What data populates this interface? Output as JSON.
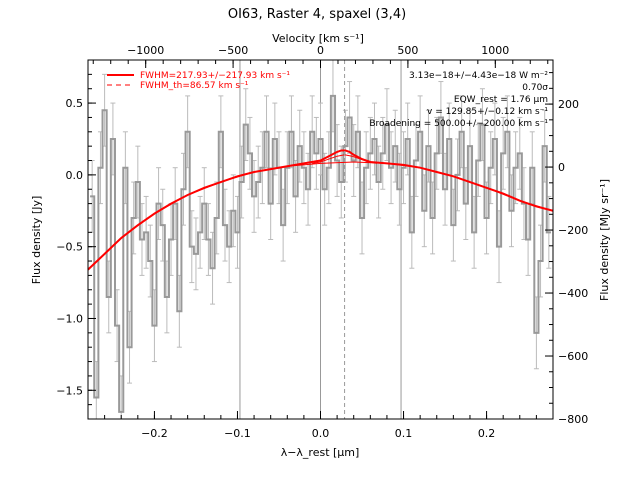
{
  "chart_data": {
    "type": "line",
    "title": "OI63, Raster 4, spaxel (3,4)",
    "xlabel": "λ−λ_rest [μm]",
    "ylabel": "Flux density [Jy]",
    "x2label": "Velocity [km s⁻¹]",
    "y2label": "Flux density [MJy sr⁻¹]",
    "xlim": [
      -0.28,
      0.28
    ],
    "ylim": [
      -1.7,
      0.8
    ],
    "x2lim": [
      -1330,
      1330
    ],
    "y2lim": [
      -800,
      340
    ],
    "xticks": [
      -0.2,
      -0.1,
      0.0,
      0.1,
      0.2
    ],
    "xtick_labels": [
      "−0.2",
      "−0.1",
      "0.0",
      "0.1",
      "0.2"
    ],
    "yticks": [
      -1.5,
      -1.0,
      -0.5,
      0.0,
      0.5
    ],
    "ytick_labels": [
      "−1.5",
      "−1.0",
      "−0.5",
      "0.0",
      "0.5"
    ],
    "x2ticks": [
      -1000,
      -500,
      0,
      500,
      1000
    ],
    "x2tick_labels": [
      "−1000",
      "−500",
      "0",
      "500",
      "1000"
    ],
    "y2ticks": [
      -800,
      -600,
      -400,
      -200,
      0,
      200
    ],
    "y2tick_labels": [
      "−800",
      "−600",
      "−400",
      "−200",
      "0",
      "200"
    ],
    "vertical_lines": [
      -0.097,
      0.0,
      0.097
    ],
    "line_center": 0.029,
    "legend": {
      "fit_label": "FWHM=217.93+/−217.93 km s⁻¹",
      "th_label": "FWHM_th=86.57 km s⁻¹",
      "fit_color": "#ff0000"
    },
    "annotations": [
      "3.13e−18+/−4.43e−18 W m⁻²",
      "0.70σ",
      "EQW_rest = 1.76 μm",
      "v = 129.85+/−0.12 km s⁻¹",
      "Broadening = 500.00+/−200.00 km s⁻¹"
    ],
    "colors": {
      "data": "#999999",
      "error": "#bbbbbb",
      "fit": "#ff0000",
      "vline": "#999999"
    },
    "series": [
      {
        "name": "spectrum",
        "x": [
          -0.275,
          -0.27,
          -0.265,
          -0.26,
          -0.255,
          -0.25,
          -0.245,
          -0.24,
          -0.235,
          -0.23,
          -0.225,
          -0.22,
          -0.215,
          -0.21,
          -0.205,
          -0.2,
          -0.195,
          -0.19,
          -0.185,
          -0.18,
          -0.175,
          -0.17,
          -0.165,
          -0.16,
          -0.155,
          -0.15,
          -0.145,
          -0.14,
          -0.135,
          -0.13,
          -0.125,
          -0.12,
          -0.115,
          -0.11,
          -0.105,
          -0.1,
          -0.095,
          -0.09,
          -0.085,
          -0.08,
          -0.075,
          -0.07,
          -0.065,
          -0.06,
          -0.055,
          -0.05,
          -0.045,
          -0.04,
          -0.035,
          -0.03,
          -0.025,
          -0.02,
          -0.015,
          -0.01,
          -0.005,
          0.0,
          0.005,
          0.01,
          0.015,
          0.02,
          0.025,
          0.03,
          0.035,
          0.04,
          0.045,
          0.05,
          0.055,
          0.06,
          0.065,
          0.07,
          0.075,
          0.08,
          0.085,
          0.09,
          0.095,
          0.1,
          0.105,
          0.11,
          0.115,
          0.12,
          0.125,
          0.13,
          0.135,
          0.14,
          0.145,
          0.15,
          0.155,
          0.16,
          0.165,
          0.17,
          0.175,
          0.18,
          0.185,
          0.19,
          0.195,
          0.2,
          0.205,
          0.21,
          0.215,
          0.22,
          0.225,
          0.23,
          0.235,
          0.24,
          0.245,
          0.25,
          0.255,
          0.26,
          0.265,
          0.27,
          0.275
        ],
        "y": [
          -0.15,
          -1.55,
          0.05,
          0.45,
          -0.85,
          0.25,
          -1.05,
          -1.65,
          0.05,
          -1.2,
          -0.3,
          -0.05,
          -0.45,
          -0.4,
          -0.6,
          -1.05,
          -0.2,
          -0.35,
          -0.85,
          -0.45,
          -0.2,
          -0.95,
          -0.1,
          0.3,
          -0.5,
          -0.55,
          -0.4,
          -0.2,
          -0.45,
          -0.65,
          -0.3,
          0.3,
          -0.35,
          -0.5,
          -0.25,
          -0.4,
          -0.05,
          0.35,
          0.15,
          -0.15,
          -0.05,
          0.05,
          0.3,
          -0.2,
          0.25,
          0.05,
          -0.35,
          0.05,
          0.3,
          -0.15,
          0.2,
          0.05,
          -0.1,
          0.3,
          0.15,
          0.25,
          -0.1,
          0.05,
          0.55,
          0.1,
          -0.05,
          0.2,
          0.4,
          0.1,
          0.3,
          -0.3,
          0.05,
          0.15,
          0.25,
          -0.05,
          0.15,
          0.35,
          0.05,
          0.2,
          -0.1,
          0.05,
          0.25,
          -0.4,
          0.1,
          0.3,
          -0.25,
          0.2,
          -0.3,
          0.15,
          0.4,
          -0.1,
          0.25,
          -0.35,
          0.0,
          0.3,
          -0.2,
          0.2,
          -0.4,
          0.1,
          0.35,
          -0.3,
          0.05,
          0.25,
          -0.5,
          0.15,
          0.3,
          -0.25,
          0.05,
          0.15,
          -0.2,
          -0.45,
          0.05,
          -1.1,
          -0.6,
          0.2,
          -0.4
        ],
        "err": [
          0.25,
          0.25,
          0.25,
          0.25,
          0.25,
          0.25,
          0.25,
          0.25,
          0.25,
          0.25,
          0.25,
          0.25,
          0.25,
          0.25,
          0.25,
          0.25,
          0.25,
          0.25,
          0.25,
          0.25,
          0.25,
          0.25,
          0.25,
          0.25,
          0.25,
          0.25,
          0.25,
          0.25,
          0.25,
          0.25,
          0.25,
          0.25,
          0.25,
          0.25,
          0.25,
          0.25,
          0.25,
          0.25,
          0.25,
          0.25,
          0.25,
          0.25,
          0.25,
          0.25,
          0.25,
          0.25,
          0.25,
          0.25,
          0.25,
          0.25,
          0.25,
          0.25,
          0.25,
          0.25,
          0.25,
          0.25,
          0.25,
          0.25,
          0.25,
          0.25,
          0.25,
          0.25,
          0.25,
          0.25,
          0.25,
          0.25,
          0.25,
          0.25,
          0.25,
          0.25,
          0.25,
          0.25,
          0.25,
          0.25,
          0.25,
          0.25,
          0.25,
          0.25,
          0.25,
          0.25,
          0.25,
          0.25,
          0.25,
          0.25,
          0.25,
          0.25,
          0.25,
          0.25,
          0.25,
          0.25,
          0.25,
          0.25,
          0.25,
          0.25,
          0.25,
          0.25,
          0.25,
          0.25,
          0.25,
          0.25,
          0.25,
          0.25,
          0.25,
          0.25,
          0.25,
          0.25,
          0.25,
          0.25,
          0.25,
          0.25,
          0.25
        ]
      },
      {
        "name": "fit",
        "x": [
          -0.28,
          -0.26,
          -0.24,
          -0.22,
          -0.2,
          -0.18,
          -0.16,
          -0.14,
          -0.12,
          -0.1,
          -0.08,
          -0.06,
          -0.04,
          -0.02,
          0.0,
          0.01,
          0.02,
          0.025,
          0.03,
          0.035,
          0.04,
          0.05,
          0.06,
          0.08,
          0.1,
          0.12,
          0.14,
          0.16,
          0.18,
          0.2,
          0.22,
          0.24,
          0.26,
          0.28
        ],
        "y": [
          -0.66,
          -0.55,
          -0.44,
          -0.35,
          -0.27,
          -0.2,
          -0.14,
          -0.09,
          -0.05,
          -0.01,
          0.02,
          0.04,
          0.06,
          0.08,
          0.1,
          0.13,
          0.16,
          0.17,
          0.17,
          0.16,
          0.14,
          0.11,
          0.09,
          0.08,
          0.07,
          0.05,
          0.02,
          -0.01,
          -0.05,
          -0.09,
          -0.13,
          -0.18,
          -0.22,
          -0.25
        ]
      },
      {
        "name": "fit_continuum",
        "x": [
          -0.28,
          -0.24,
          -0.2,
          -0.16,
          -0.12,
          -0.08,
          -0.04,
          0.0,
          0.04,
          0.08,
          0.12,
          0.16,
          0.2,
          0.24,
          0.28
        ],
        "y": [
          -0.66,
          -0.44,
          -0.27,
          -0.14,
          -0.05,
          0.02,
          0.06,
          0.08,
          0.09,
          0.08,
          0.05,
          -0.01,
          -0.09,
          -0.18,
          -0.25
        ]
      },
      {
        "name": "gaussian",
        "x": [
          -0.01,
          0.0,
          0.01,
          0.02,
          0.029,
          0.038,
          0.048,
          0.058,
          0.068
        ],
        "y": [
          0.08,
          0.09,
          0.11,
          0.13,
          0.14,
          0.13,
          0.11,
          0.09,
          0.08
        ]
      }
    ]
  }
}
